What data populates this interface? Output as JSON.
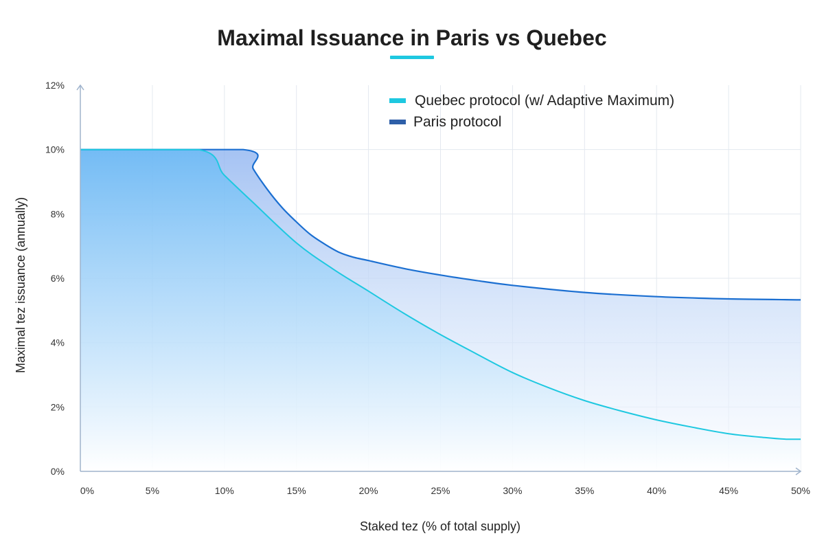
{
  "chart_data": {
    "type": "line",
    "title": "Maximal Issuance in Paris vs Quebec",
    "xlabel": "Staked tez (% of total supply)",
    "ylabel": "Maximal tez issuance (annually)",
    "xlim": [
      0,
      50
    ],
    "ylim": [
      0,
      12
    ],
    "x_ticks": [
      0,
      5,
      10,
      15,
      20,
      25,
      30,
      35,
      40,
      45,
      50
    ],
    "x_tick_labels": [
      "0%",
      "5%",
      "10%",
      "15%",
      "20%",
      "25%",
      "30%",
      "35%",
      "40%",
      "45%",
      "50%"
    ],
    "y_ticks": [
      0,
      2,
      4,
      6,
      8,
      10,
      12
    ],
    "y_tick_labels": [
      "0%",
      "2%",
      "4%",
      "6%",
      "8%",
      "10%",
      "12%"
    ],
    "grid": true,
    "legend_position": "top-right",
    "series": [
      {
        "name": "Quebec protocol (w/ Adaptive Maximum)",
        "color": "#1ec8e0",
        "x": [
          0,
          8.2,
          10,
          12,
          15,
          17.5,
          20,
          22.5,
          25,
          27.5,
          30,
          32.5,
          35,
          37.5,
          40,
          42.5,
          45,
          47.5,
          49,
          50
        ],
        "y": [
          10,
          10,
          9.2,
          8.35,
          7.1,
          6.3,
          5.6,
          4.9,
          4.25,
          3.65,
          3.07,
          2.6,
          2.2,
          1.88,
          1.6,
          1.37,
          1.17,
          1.05,
          1.0,
          1.0
        ]
      },
      {
        "name": "Paris protocol",
        "color": "#1b6fd1",
        "x": [
          0,
          11.3,
          12,
          13,
          14,
          15,
          16,
          17,
          18,
          19,
          20,
          22.5,
          25,
          27.5,
          30,
          35,
          40,
          45,
          50
        ],
        "y": [
          10,
          10,
          9.4,
          8.75,
          8.2,
          7.75,
          7.35,
          7.05,
          6.8,
          6.65,
          6.55,
          6.3,
          6.1,
          5.93,
          5.78,
          5.56,
          5.43,
          5.36,
          5.33
        ]
      }
    ],
    "accent_color": "#1ec8e0"
  }
}
